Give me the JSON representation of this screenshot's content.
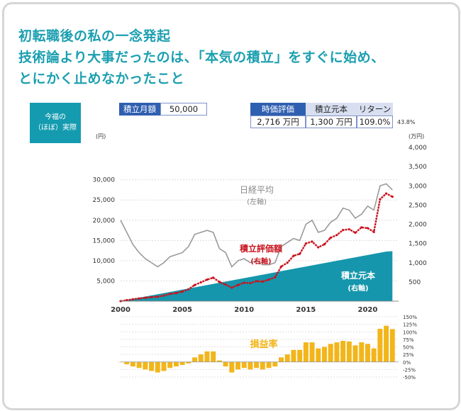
{
  "title": {
    "line1": "初転職後の私の一念発起",
    "line2": "技術論より大事だったのは、「本気の積立」をすぐに始め、",
    "line3": "とにかく止めなかったこと"
  },
  "badge": {
    "line1": "今福の",
    "line2": "（ほぼ）実際"
  },
  "inputs": {
    "monthly_label": "積立月額",
    "monthly_value": "50,000"
  },
  "summary": {
    "h_value": "時価評価",
    "h_principal": "積立元本",
    "h_return": "リターン",
    "value": "2,716",
    "value_unit": "万円",
    "principal": "1,300",
    "principal_unit": "万円",
    "return": "109.0%",
    "note": "43.8%"
  },
  "colors": {
    "nikkei": "#9a9a9a",
    "value": "#c8141e",
    "principal": "#1596ac",
    "pnl": "#f2b51a"
  },
  "chart_data": [
    {
      "type": "line",
      "left_unit": "(円)",
      "right_unit": "(万円)",
      "x_ticks": [
        "2000",
        "2005",
        "2010",
        "2015",
        "2020"
      ],
      "y_left_ticks": [
        "30,000",
        "25,000",
        "20,000",
        "15,000",
        "10,000",
        "5,000"
      ],
      "y_right_ticks": [
        "4,000",
        "3,500",
        "3,000",
        "2,500",
        "2,000",
        "1,500",
        "1,000",
        "500"
      ],
      "ylim_left": [
        0,
        38000
      ],
      "ylim_right": [
        0,
        4000
      ],
      "x": [
        2000.0,
        2000.5,
        2001.0,
        2001.5,
        2002.0,
        2002.5,
        2003.0,
        2003.5,
        2004.0,
        2004.5,
        2005.0,
        2005.5,
        2006.0,
        2006.5,
        2007.0,
        2007.5,
        2008.0,
        2008.5,
        2009.0,
        2009.5,
        2010.0,
        2010.5,
        2011.0,
        2011.5,
        2012.0,
        2012.5,
        2013.0,
        2013.5,
        2014.0,
        2014.5,
        2015.0,
        2015.5,
        2016.0,
        2016.5,
        2017.0,
        2017.5,
        2018.0,
        2018.5,
        2019.0,
        2019.5,
        2020.0,
        2020.5,
        2021.0,
        2021.5,
        2022.0
      ],
      "series": [
        {
          "name": "日経平均",
          "sub": "(左軸)",
          "axis": "left",
          "values": [
            20000,
            17000,
            14000,
            12000,
            10500,
            9500,
            8500,
            9500,
            11000,
            11500,
            12000,
            13500,
            16500,
            17000,
            17500,
            17000,
            13000,
            12000,
            8500,
            10000,
            10500,
            9500,
            10000,
            9000,
            9000,
            9500,
            13500,
            14500,
            15500,
            15000,
            19000,
            20000,
            17000,
            17500,
            19500,
            20500,
            23000,
            22500,
            20500,
            21500,
            23500,
            22500,
            28500,
            29000,
            27500
          ]
        },
        {
          "name": "積立評価額",
          "sub": "(右軸)",
          "axis": "right",
          "values": [
            0,
            25,
            50,
            70,
            90,
            105,
            115,
            145,
            190,
            210,
            250,
            310,
            420,
            490,
            560,
            610,
            500,
            430,
            350,
            420,
            480,
            470,
            520,
            510,
            560,
            620,
            900,
            1000,
            1180,
            1230,
            1500,
            1550,
            1400,
            1480,
            1650,
            1720,
            1850,
            1870,
            1780,
            1920,
            1900,
            1800,
            2650,
            2800,
            2716
          ]
        },
        {
          "name": "積立元本",
          "sub": "(右軸)",
          "axis": "right",
          "type": "area",
          "values": [
            0,
            30,
            60,
            90,
            120,
            150,
            180,
            210,
            240,
            270,
            300,
            330,
            360,
            390,
            420,
            450,
            480,
            510,
            540,
            570,
            600,
            630,
            660,
            690,
            720,
            750,
            780,
            810,
            840,
            870,
            900,
            930,
            960,
            990,
            1020,
            1050,
            1080,
            1110,
            1140,
            1170,
            1200,
            1230,
            1260,
            1290,
            1300
          ]
        }
      ]
    },
    {
      "type": "bar",
      "name": "損益率",
      "y_ticks": [
        "150%",
        "125%",
        "100%",
        "75%",
        "50%",
        "25%",
        "0%",
        "-25%",
        "-50%"
      ],
      "ylim": [
        -50,
        150
      ],
      "x": [
        2000.0,
        2000.5,
        2001.0,
        2001.5,
        2002.0,
        2002.5,
        2003.0,
        2003.5,
        2004.0,
        2004.5,
        2005.0,
        2005.5,
        2006.0,
        2006.5,
        2007.0,
        2007.5,
        2008.0,
        2008.5,
        2009.0,
        2009.5,
        2010.0,
        2010.5,
        2011.0,
        2011.5,
        2012.0,
        2012.5,
        2013.0,
        2013.5,
        2014.0,
        2014.5,
        2015.0,
        2015.5,
        2016.0,
        2016.5,
        2017.0,
        2017.5,
        2018.0,
        2018.5,
        2019.0,
        2019.5,
        2020.0,
        2020.5,
        2021.0,
        2021.5,
        2022.0
      ],
      "values": [
        0,
        -8,
        -15,
        -20,
        -25,
        -30,
        -35,
        -30,
        -20,
        -15,
        -10,
        -5,
        15,
        25,
        35,
        35,
        5,
        -15,
        -35,
        -25,
        -20,
        -25,
        -20,
        -25,
        -20,
        -15,
        15,
        25,
        40,
        40,
        65,
        65,
        45,
        50,
        60,
        65,
        70,
        68,
        55,
        65,
        60,
        45,
        110,
        120,
        109
      ]
    }
  ]
}
